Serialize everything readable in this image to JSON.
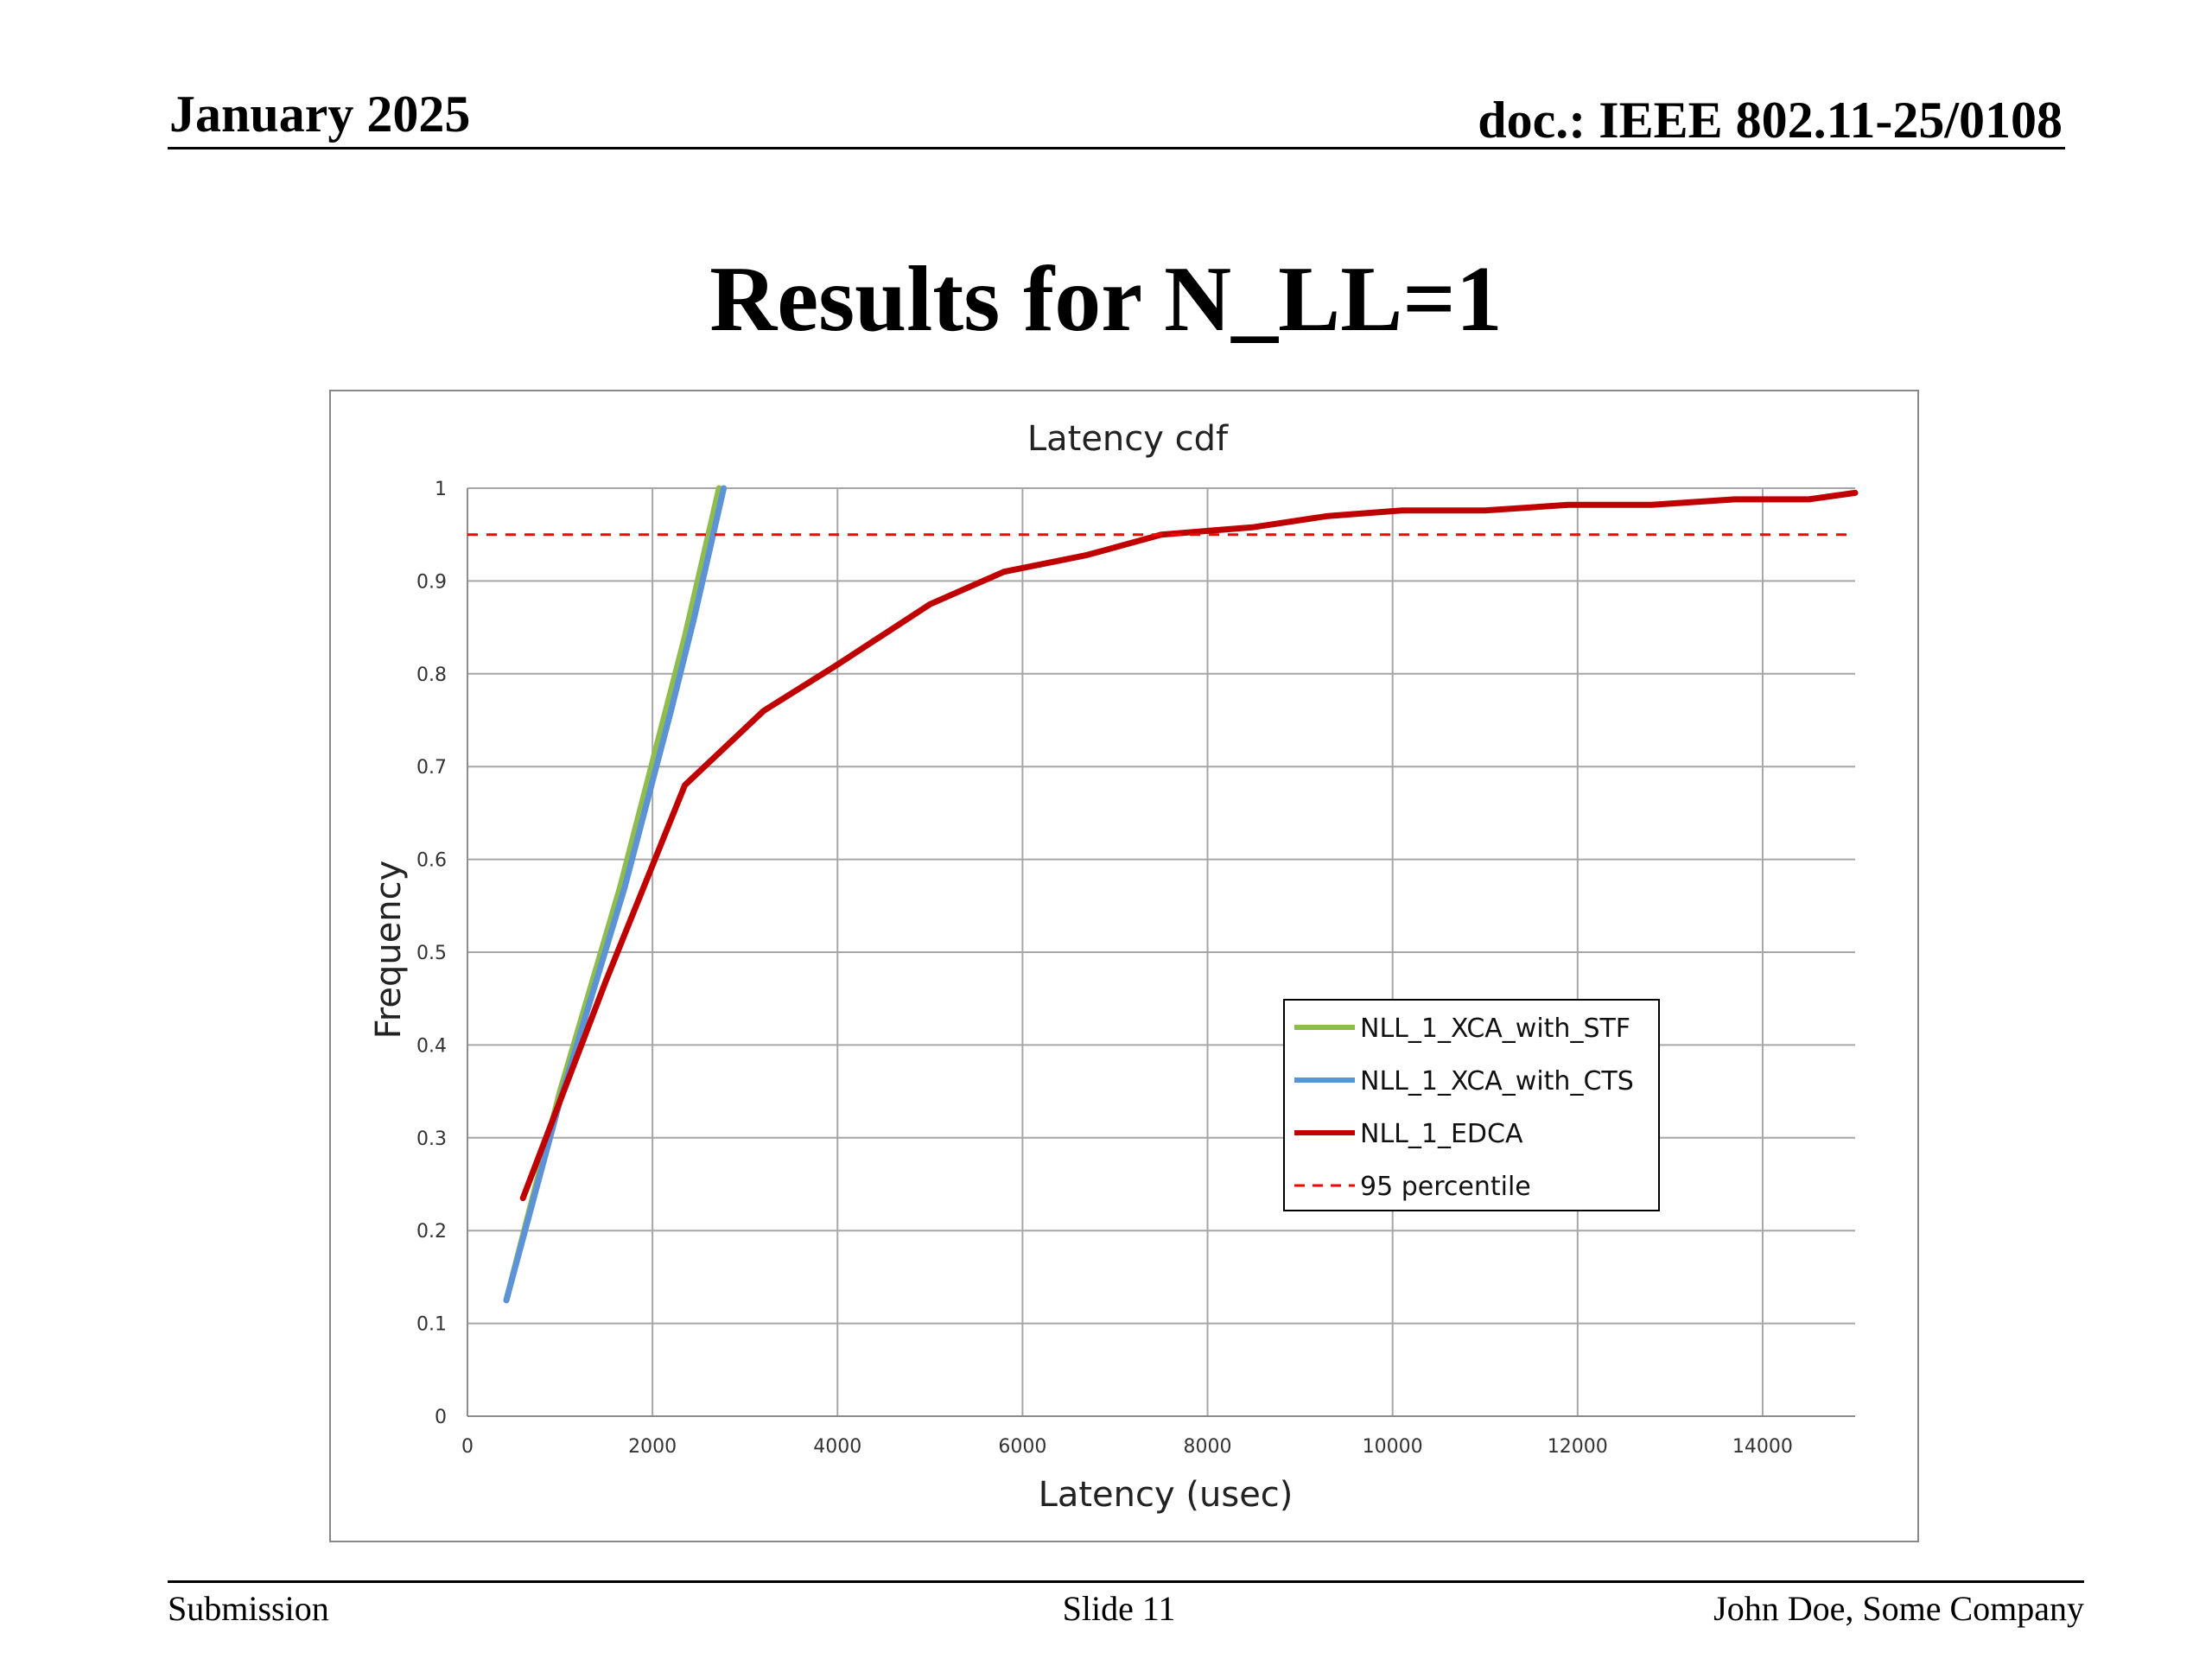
{
  "header": {
    "date": "January 2025",
    "doc": "doc.: IEEE 802.11-25/0108"
  },
  "slide": {
    "title": "Results for N_LL=1"
  },
  "footer": {
    "left": "Submission",
    "center": "Slide 11",
    "right": "John Doe, Some Company"
  },
  "chart_data": {
    "type": "line",
    "title": "Latency cdf",
    "xlabel": "Latency (usec)",
    "ylabel": "Frequency",
    "xlim": [
      0,
      15000
    ],
    "ylim": [
      0,
      1
    ],
    "xticks": [
      0,
      2000,
      4000,
      6000,
      8000,
      10000,
      12000,
      14000
    ],
    "yticks": [
      0,
      0.1,
      0.2,
      0.3,
      0.4,
      0.5,
      0.6,
      0.7,
      0.8,
      0.9,
      1
    ],
    "grid": true,
    "legend_position": "bottom-right",
    "series": [
      {
        "name": "NLL_1_XCA_with_STF",
        "color": "#8fbc4f",
        "dash": false,
        "points": [
          [
            420,
            0.125
          ],
          [
            1000,
            0.35
          ],
          [
            1650,
            0.57
          ],
          [
            2350,
            0.84
          ],
          [
            2720,
            1.0
          ]
        ]
      },
      {
        "name": "NLL_1_XCA_with_CTS",
        "color": "#5b93d6",
        "dash": false,
        "points": [
          [
            420,
            0.125
          ],
          [
            1000,
            0.34
          ],
          [
            1700,
            0.57
          ],
          [
            2200,
            0.76
          ],
          [
            2450,
            0.86
          ],
          [
            2770,
            1.0
          ]
        ]
      },
      {
        "name": "NLL_1_EDCA",
        "color": "#c00000",
        "dash": false,
        "points": [
          [
            600,
            0.235
          ],
          [
            1500,
            0.47
          ],
          [
            2350,
            0.68
          ],
          [
            3200,
            0.76
          ],
          [
            4000,
            0.81
          ],
          [
            5000,
            0.875
          ],
          [
            5800,
            0.91
          ],
          [
            6700,
            0.928
          ],
          [
            7500,
            0.95
          ],
          [
            8500,
            0.958
          ],
          [
            9300,
            0.97
          ],
          [
            10100,
            0.976
          ],
          [
            11000,
            0.976
          ],
          [
            11900,
            0.982
          ],
          [
            12800,
            0.982
          ],
          [
            13700,
            0.988
          ],
          [
            14500,
            0.988
          ],
          [
            15000,
            0.995
          ]
        ]
      },
      {
        "name": "95 percentile",
        "color": "#ff0000",
        "dash": true,
        "points": [
          [
            0,
            0.95
          ],
          [
            15000,
            0.95
          ]
        ]
      }
    ]
  }
}
